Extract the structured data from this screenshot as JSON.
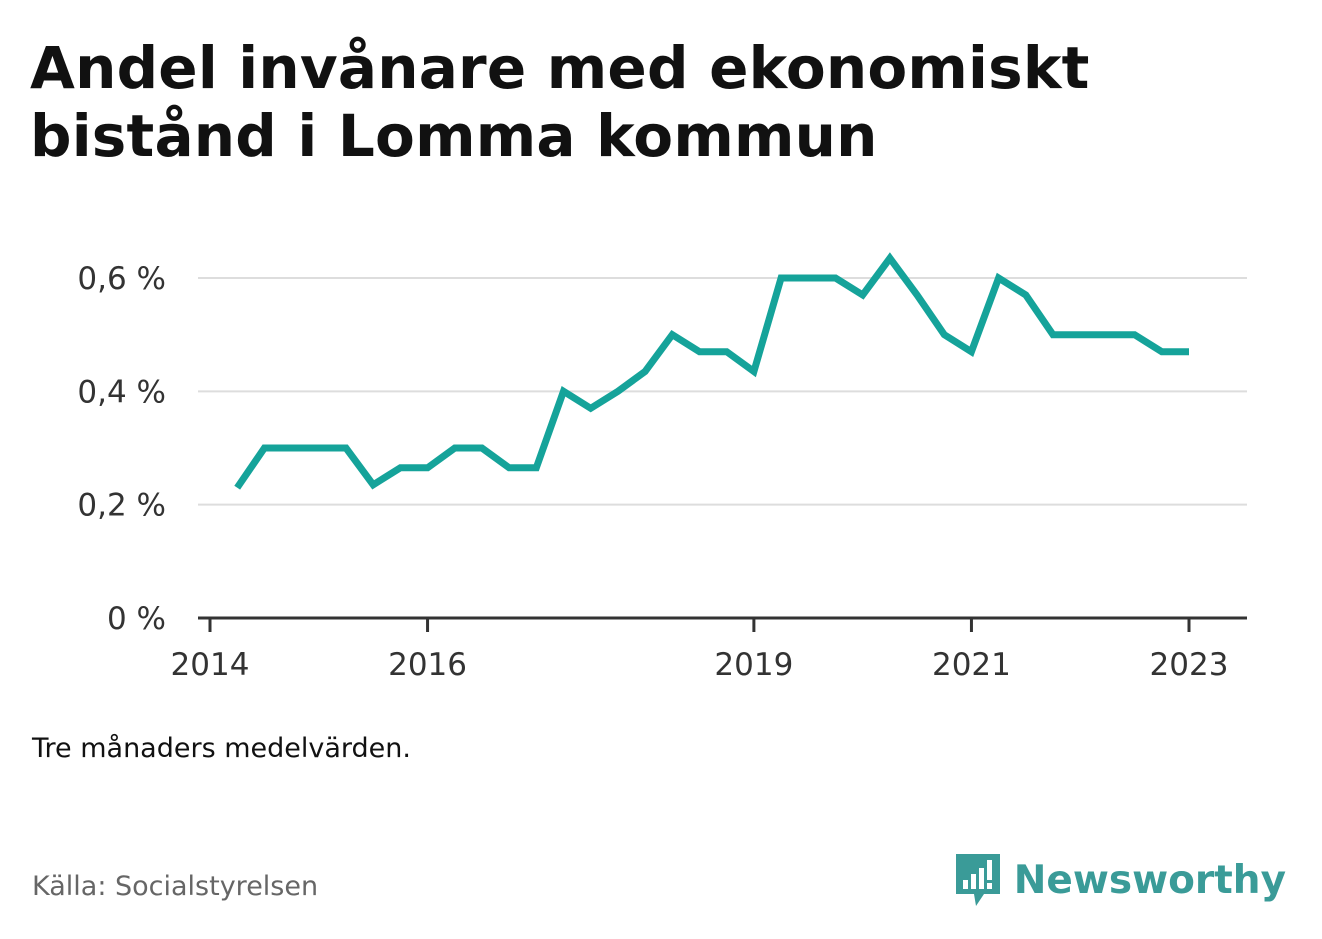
{
  "title": "Andel invånare med ekonomiskt bistånd i Lomma kommun",
  "note": "Tre månaders medelvärden.",
  "source": "Källa: Socialstyrelsen",
  "brand": {
    "name": "Newsworthy",
    "icon": "newsworthy-logo-icon",
    "color": "#3a9b98"
  },
  "colors": {
    "line": "#15a39a",
    "grid": "#dddddd",
    "axis": "#333333"
  },
  "chart_data": {
    "type": "line",
    "title": "Andel invånare med ekonomiskt bistånd i Lomma kommun",
    "xlabel": "",
    "ylabel": "",
    "ylim": [
      0,
      0.6
    ],
    "yticks": [
      {
        "value": 0,
        "label": "0 %"
      },
      {
        "value": 0.2,
        "label": "0,2 %"
      },
      {
        "value": 0.4,
        "label": "0,4 %"
      },
      {
        "value": 0.6,
        "label": "0,6 %"
      }
    ],
    "xticks": [
      {
        "value": "2014-01",
        "label": "2014"
      },
      {
        "value": "2016-01",
        "label": "2016"
      },
      {
        "value": "2019-01",
        "label": "2019"
      },
      {
        "value": "2021-01",
        "label": "2021"
      },
      {
        "value": "2023-01",
        "label": "2023"
      }
    ],
    "xlim": [
      "2014-01",
      "2023-06"
    ],
    "grid": true,
    "series": [
      {
        "values": [
          {
            "x": "2014-04",
            "y": 0.23
          },
          {
            "x": "2014-07",
            "y": 0.3
          },
          {
            "x": "2014-10",
            "y": 0.3
          },
          {
            "x": "2015-01",
            "y": 0.3
          },
          {
            "x": "2015-04",
            "y": 0.3
          },
          {
            "x": "2015-07",
            "y": 0.235
          },
          {
            "x": "2015-10",
            "y": 0.265
          },
          {
            "x": "2016-01",
            "y": 0.265
          },
          {
            "x": "2016-04",
            "y": 0.3
          },
          {
            "x": "2016-07",
            "y": 0.3
          },
          {
            "x": "2016-10",
            "y": 0.265
          },
          {
            "x": "2017-01",
            "y": 0.265
          },
          {
            "x": "2017-04",
            "y": 0.4
          },
          {
            "x": "2017-07",
            "y": 0.37
          },
          {
            "x": "2017-10",
            "y": 0.4
          },
          {
            "x": "2018-01",
            "y": 0.435
          },
          {
            "x": "2018-04",
            "y": 0.5
          },
          {
            "x": "2018-07",
            "y": 0.47
          },
          {
            "x": "2018-10",
            "y": 0.47
          },
          {
            "x": "2019-01",
            "y": 0.435
          },
          {
            "x": "2019-04",
            "y": 0.6
          },
          {
            "x": "2019-07",
            "y": 0.6
          },
          {
            "x": "2019-10",
            "y": 0.6
          },
          {
            "x": "2020-01",
            "y": 0.57
          },
          {
            "x": "2020-04",
            "y": 0.635
          },
          {
            "x": "2020-07",
            "y": 0.57
          },
          {
            "x": "2020-10",
            "y": 0.5
          },
          {
            "x": "2021-01",
            "y": 0.47
          },
          {
            "x": "2021-04",
            "y": 0.6
          },
          {
            "x": "2021-07",
            "y": 0.57
          },
          {
            "x": "2021-10",
            "y": 0.5
          },
          {
            "x": "2022-01",
            "y": 0.5
          },
          {
            "x": "2022-04",
            "y": 0.5
          },
          {
            "x": "2022-07",
            "y": 0.5
          },
          {
            "x": "2022-10",
            "y": 0.47
          },
          {
            "x": "2023-01",
            "y": 0.47
          }
        ]
      }
    ]
  }
}
